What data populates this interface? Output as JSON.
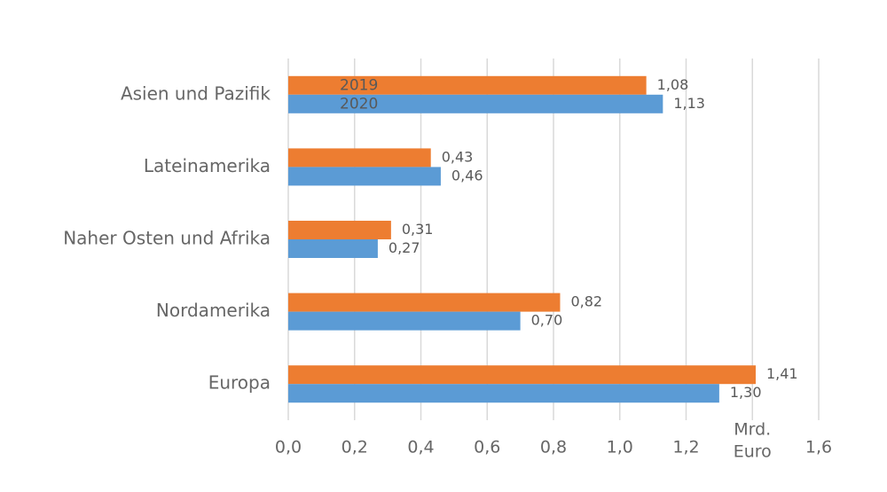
{
  "chart_data": {
    "type": "bar",
    "orientation": "horizontal",
    "categories": [
      "Asien und Pazifik",
      "Lateinamerika",
      "Naher Osten und Afrika",
      "Nordamerika",
      "Europa"
    ],
    "series": [
      {
        "name": "2019",
        "color": "#ed7d31",
        "values": [
          1.08,
          0.43,
          0.31,
          0.82,
          1.41
        ],
        "value_labels": [
          "1,08",
          "0,43",
          "0,31",
          "0,82",
          "1,41"
        ]
      },
      {
        "name": "2020",
        "color": "#5b9bd5",
        "values": [
          1.13,
          0.46,
          0.27,
          0.7,
          1.3
        ],
        "value_labels": [
          "1,13",
          "0,46",
          "0,27",
          "0,70",
          "1,30"
        ]
      }
    ],
    "xlim": [
      0,
      1.6
    ],
    "xticks": [
      {
        "value": 0,
        "label": "0,0"
      },
      {
        "value": 0.2,
        "label": "0,2"
      },
      {
        "value": 0.4,
        "label": "0,4"
      },
      {
        "value": 0.6,
        "label": "0,6"
      },
      {
        "value": 0.8,
        "label": "0,8"
      },
      {
        "value": 1.0,
        "label": "1,0"
      },
      {
        "value": 1.2,
        "label": "1,2"
      },
      {
        "value": 1.6,
        "label": "1,6"
      }
    ],
    "xgrid": [
      0,
      0.2,
      0.4,
      0.6,
      0.8,
      1.0,
      1.2,
      1.4,
      1.6
    ],
    "x_label": {
      "value": 1.4,
      "lines": [
        "Mrd.",
        "Euro"
      ]
    },
    "grid": true
  }
}
